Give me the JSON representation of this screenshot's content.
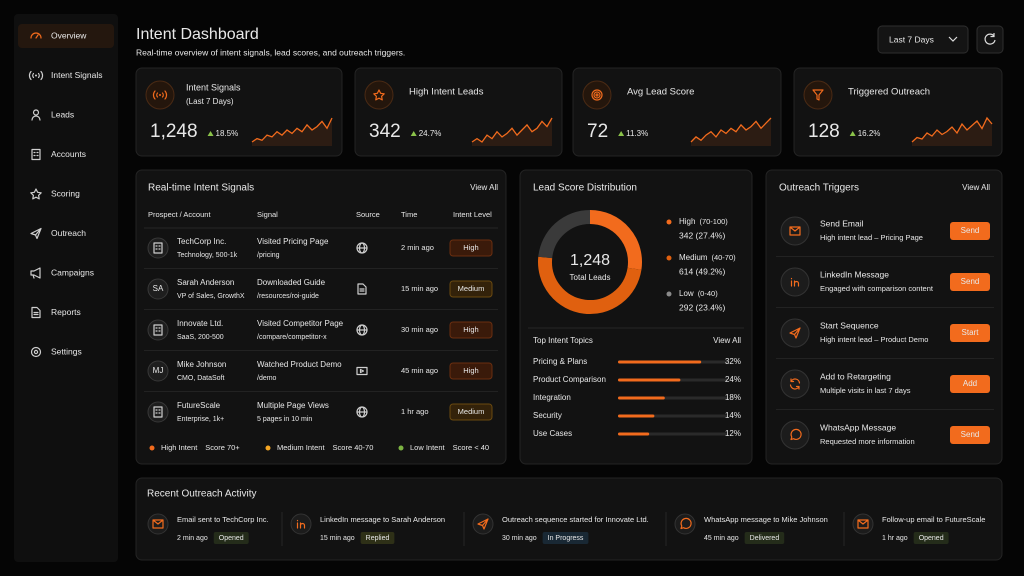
{
  "sidebar": {
    "items": [
      "Overview",
      "Intent Signals",
      "Leads",
      "Accounts",
      "Scoring",
      "Outreach",
      "Campaigns",
      "Reports",
      "Settings"
    ]
  },
  "header": {
    "title": "Intent Dashboard",
    "subtitle": "Real-time overview of intent signals, lead scores, and outreach triggers.",
    "date_range": "Last 7 Days"
  },
  "kpis": [
    {
      "title": "Intent Signals",
      "subtitle": "(Last 7 Days)",
      "value": "1,248",
      "change": "18.5%",
      "trend": [
        3,
        4,
        3.5,
        5,
        4.5,
        6,
        5,
        6.5,
        5.5,
        7,
        6,
        8,
        6.5,
        7.5,
        9,
        7,
        10
      ]
    },
    {
      "title": "High Intent Leads",
      "value": "342",
      "change": "24.7%",
      "trend": [
        3,
        4,
        3,
        5,
        4,
        6,
        4.5,
        5.5,
        7,
        5,
        6.5,
        8,
        6,
        7,
        9,
        7.5,
        10
      ]
    },
    {
      "title": "Avg Lead Score",
      "value": "72",
      "change": "11.3%",
      "trend": [
        3,
        4.5,
        3.5,
        5,
        6,
        4.5,
        6.5,
        5.5,
        7,
        6,
        8,
        6.5,
        7.5,
        9,
        7,
        8.5,
        10
      ]
    },
    {
      "title": "Triggered Outreach",
      "value": "128",
      "change": "16.2%",
      "trend": [
        2,
        3.5,
        3,
        5,
        4,
        6,
        4.5,
        5.5,
        7,
        5,
        8,
        6,
        7.5,
        9,
        6.5,
        10,
        8
      ]
    }
  ],
  "signals": {
    "title": "Real-time Intent Signals",
    "view_all": "View All",
    "columns": [
      "Prospect / Account",
      "Signal",
      "Source",
      "Time",
      "Intent Level"
    ],
    "rows": [
      {
        "name": "TechCorp Inc.",
        "detail": "Technology, 500-1k",
        "signal": "Visited Pricing Page",
        "path": "/pricing",
        "time": "2 min ago",
        "level": "High"
      },
      {
        "avatar": "SA",
        "name": "Sarah Anderson",
        "detail": "VP of Sales, GrowthX",
        "signal": "Downloaded Guide",
        "path": "/resources/roi-guide",
        "time": "15 min ago",
        "level": "Medium"
      },
      {
        "name": "Innovate Ltd.",
        "detail": "SaaS, 200-500",
        "signal": "Visited Competitor Page",
        "path": "/compare/competitor-x",
        "time": "30 min ago",
        "level": "High"
      },
      {
        "avatar": "MJ",
        "name": "Mike Johnson",
        "detail": "CMO, DataSoft",
        "signal": "Watched Product Demo",
        "path": "/demo",
        "time": "45 min ago",
        "level": "High"
      },
      {
        "name": "FutureScale",
        "detail": "Enterprise, 1k+",
        "signal": "Multiple Page Views",
        "path": "5 pages in 10 min",
        "time": "1 hr ago",
        "level": "Medium"
      }
    ],
    "legend": [
      {
        "label": "High Intent",
        "range": "Score 70+",
        "color": "#f26b1d"
      },
      {
        "label": "Medium Intent",
        "range": "Score 40-70",
        "color": "#f5a623"
      },
      {
        "label": "Low Intent",
        "range": "Score < 40",
        "color": "#7cb342"
      }
    ]
  },
  "distribution": {
    "title": "Lead Score Distribution",
    "total": "1,248",
    "total_caption": "Total Leads",
    "segments": [
      {
        "name": "High",
        "range": "(70-100)",
        "value": 342,
        "value_label": "342 (27.4%)",
        "color": "#f26b1d"
      },
      {
        "name": "Medium",
        "range": "(40-70)",
        "value": 614,
        "value_label": "614 (49.2%)",
        "color": "#e0600f"
      },
      {
        "name": "Low",
        "range": "(0-40)",
        "value": 292,
        "value_label": "292 (23.4%)",
        "color": "#3a3a3a"
      }
    ],
    "topics_title": "Top Intent Topics",
    "view_all": "View All",
    "topics": [
      {
        "name": "Pricing & Plans",
        "value": 32,
        "value_label": "32%"
      },
      {
        "name": "Product Comparison",
        "value": 24,
        "value_label": "24%"
      },
      {
        "name": "Integration",
        "value": 18,
        "value_label": "18%"
      },
      {
        "name": "Security",
        "value": 14,
        "value_label": "14%"
      },
      {
        "name": "Use Cases",
        "value": 12,
        "value_label": "12%"
      }
    ]
  },
  "triggers": {
    "title": "Outreach Triggers",
    "view_all": "View All",
    "items": [
      {
        "title": "Send Email",
        "detail": "High intent lead – Pricing Page",
        "action": "Send"
      },
      {
        "title": "LinkedIn Message",
        "detail": "Engaged with comparison content",
        "action": "Send"
      },
      {
        "title": "Start Sequence",
        "detail": "High intent lead – Product Demo",
        "action": "Start"
      },
      {
        "title": "Add to Retargeting",
        "detail": "Multiple visits in last 7 days",
        "action": "Add"
      },
      {
        "title": "WhatsApp Message",
        "detail": "Requested more information",
        "action": "Send"
      }
    ]
  },
  "activity": {
    "title": "Recent Outreach Activity",
    "items": [
      {
        "text": "Email sent to TechCorp Inc.",
        "time": "2 min ago",
        "status": "Opened",
        "color": "#8bc34a"
      },
      {
        "text": "LinkedIn message to Sarah Anderson",
        "time": "15 min ago",
        "status": "Replied",
        "color": "#cddc39"
      },
      {
        "text": "Outreach sequence started for Innovate Ltd.",
        "time": "30 min ago",
        "status": "In Progress",
        "color": "#42a5f5"
      },
      {
        "text": "WhatsApp message to Mike Johnson",
        "time": "45 min ago",
        "status": "Delivered",
        "color": "#8bc34a"
      },
      {
        "text": "Follow-up email to FutureScale",
        "time": "1 hr ago",
        "status": "Opened",
        "color": "#8bc34a"
      }
    ]
  }
}
